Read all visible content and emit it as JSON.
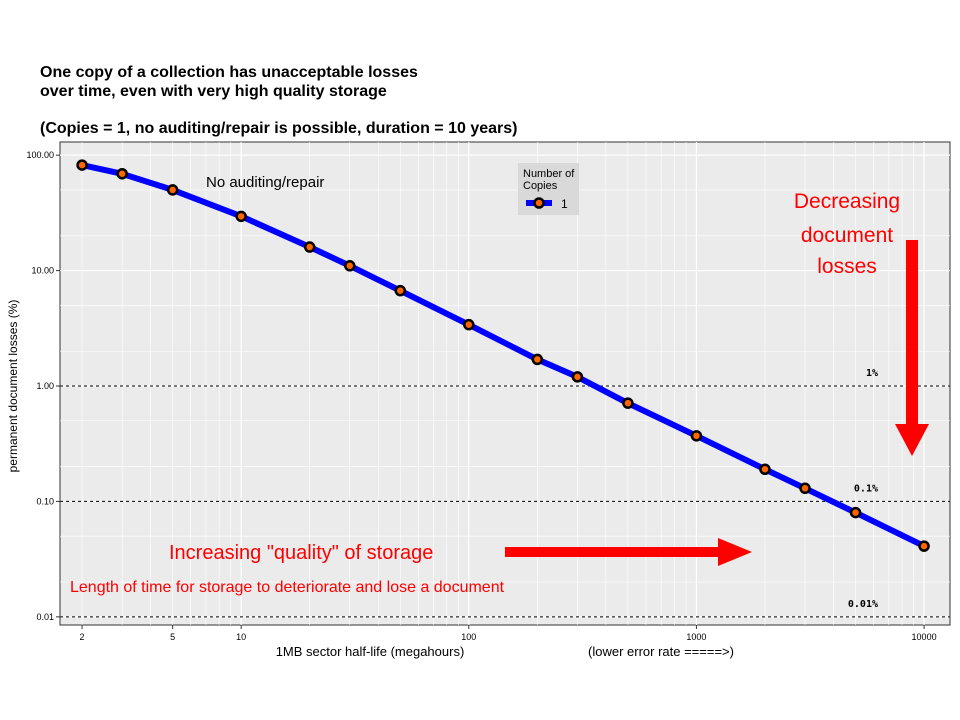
{
  "title_lines": [
    "One copy of a collection has unacceptable losses",
    "over time, even with very high quality storage"
  ],
  "subtitle": "(Copies = 1, no auditing/repair is possible, duration = 10 years)",
  "colors": {
    "series": "#0000ff",
    "marker_fill": "#ff6600",
    "marker_edge": "#000000",
    "annotation": "#ff0000",
    "panel_bg": "#ebebeb",
    "grid": "#ffffff"
  },
  "chart_data": {
    "type": "line",
    "x_scale": "log",
    "y_scale": "log",
    "xlabel": "1MB sector half-life (megahours)",
    "xlabel_note": "(lower error rate =====>)",
    "ylabel": "permanent document losses (%)",
    "xlim": [
      1.6,
      13000
    ],
    "ylim": [
      0.0085,
      130
    ],
    "x_ticks": [
      2,
      5,
      10,
      100,
      1000,
      10000
    ],
    "x_tick_labels": [
      "2",
      "5",
      "10",
      "100",
      "1000",
      "10000"
    ],
    "y_ticks": [
      100,
      10,
      1,
      0.1,
      0.01
    ],
    "y_tick_labels": [
      "100.00",
      "10.00",
      "1.00",
      "0.10",
      "0.01"
    ],
    "legend": {
      "title": "Number of Copies",
      "entries": [
        "1"
      ],
      "placement": "top-center"
    },
    "series": [
      {
        "name": "1",
        "x": [
          2,
          3,
          5,
          10,
          20,
          30,
          50,
          100,
          200,
          300,
          500,
          1000,
          2000,
          3000,
          5000,
          10000
        ],
        "y": [
          82,
          69,
          50,
          29.5,
          16,
          11,
          6.7,
          3.4,
          1.7,
          1.2,
          0.71,
          0.37,
          0.19,
          0.13,
          0.08,
          0.041
        ]
      }
    ],
    "reference_lines": [
      {
        "y": 1,
        "label": "1%"
      },
      {
        "y": 0.1,
        "label": "0.1%"
      },
      {
        "y": 0.01,
        "label": "0.01%"
      }
    ],
    "annotations": {
      "series_note": "No auditing/repair",
      "decreasing": [
        "Decreasing",
        "document",
        "losses"
      ],
      "increasing": "Increasing \"quality\" of storage",
      "length_note": "Length of time for storage to deteriorate and lose a document"
    }
  }
}
